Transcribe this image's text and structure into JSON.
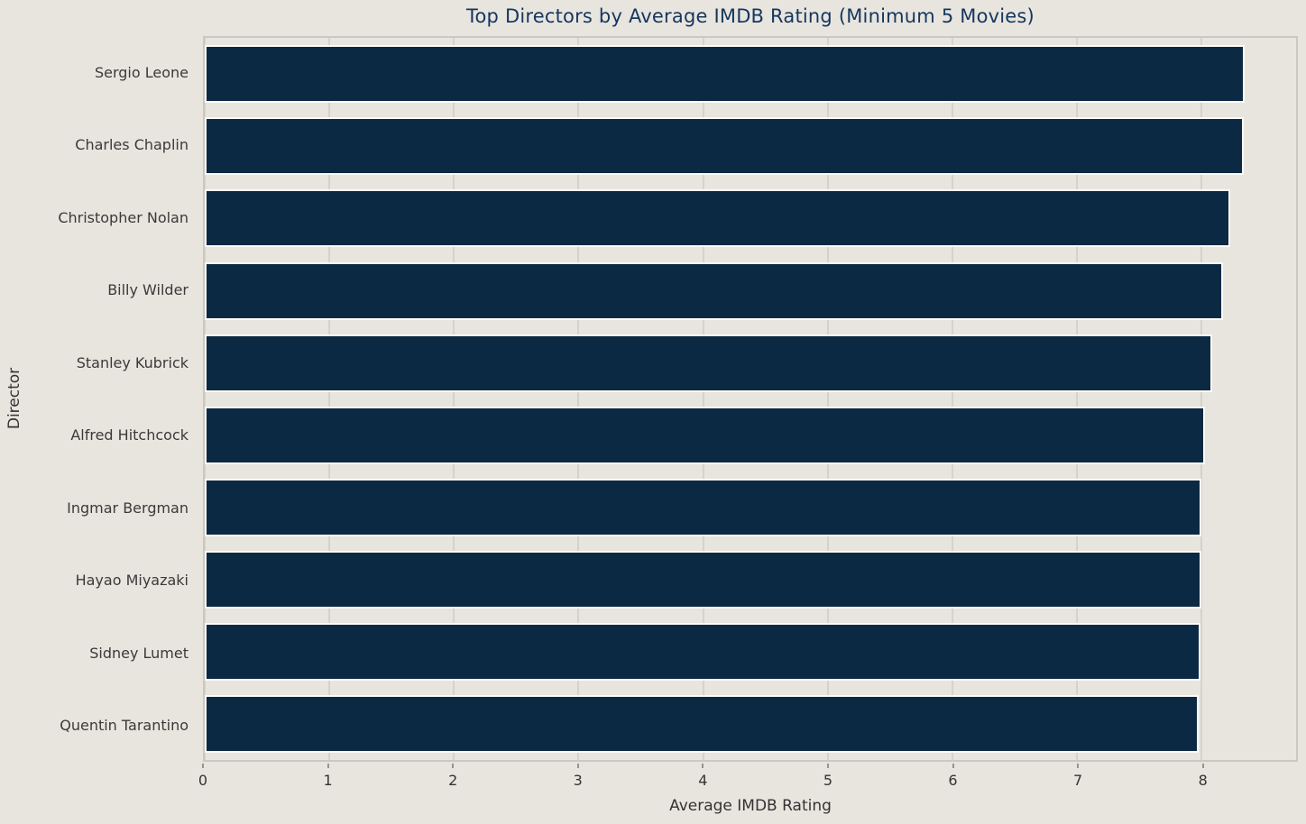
{
  "figure": {
    "background_color": "#e8e5de"
  },
  "chart_data": {
    "type": "bar",
    "orientation": "horizontal",
    "title": "Top Directors by Average IMDB Rating (Minimum 5 Movies)",
    "xlabel": "Average IMDB Rating",
    "ylabel": "Director",
    "categories": [
      "Sergio Leone",
      "Charles Chaplin",
      "Christopher Nolan",
      "Billy Wilder",
      "Stanley Kubrick",
      "Alfred Hitchcock",
      "Ingmar Bergman",
      "Hayao Miyazaki",
      "Sidney Lumet",
      "Quentin Tarantino"
    ],
    "values": [
      8.35,
      8.34,
      8.23,
      8.17,
      8.09,
      8.03,
      8.0,
      8.0,
      7.99,
      7.98
    ],
    "xlim": [
      0,
      8.76
    ],
    "xticks": [
      0,
      1,
      2,
      3,
      4,
      5,
      6,
      7,
      8
    ],
    "grid": true,
    "legend": "none",
    "colors": {
      "bar_fill": "#0c2944",
      "bar_edge": "#fbfaf5",
      "grid_line": "#d5d2cb",
      "plot_border": "#cbc8c1",
      "title_text": "#15365f",
      "tick_text": "#333333",
      "category_text": "#3a3a3a",
      "background": "#e8e5de"
    }
  }
}
